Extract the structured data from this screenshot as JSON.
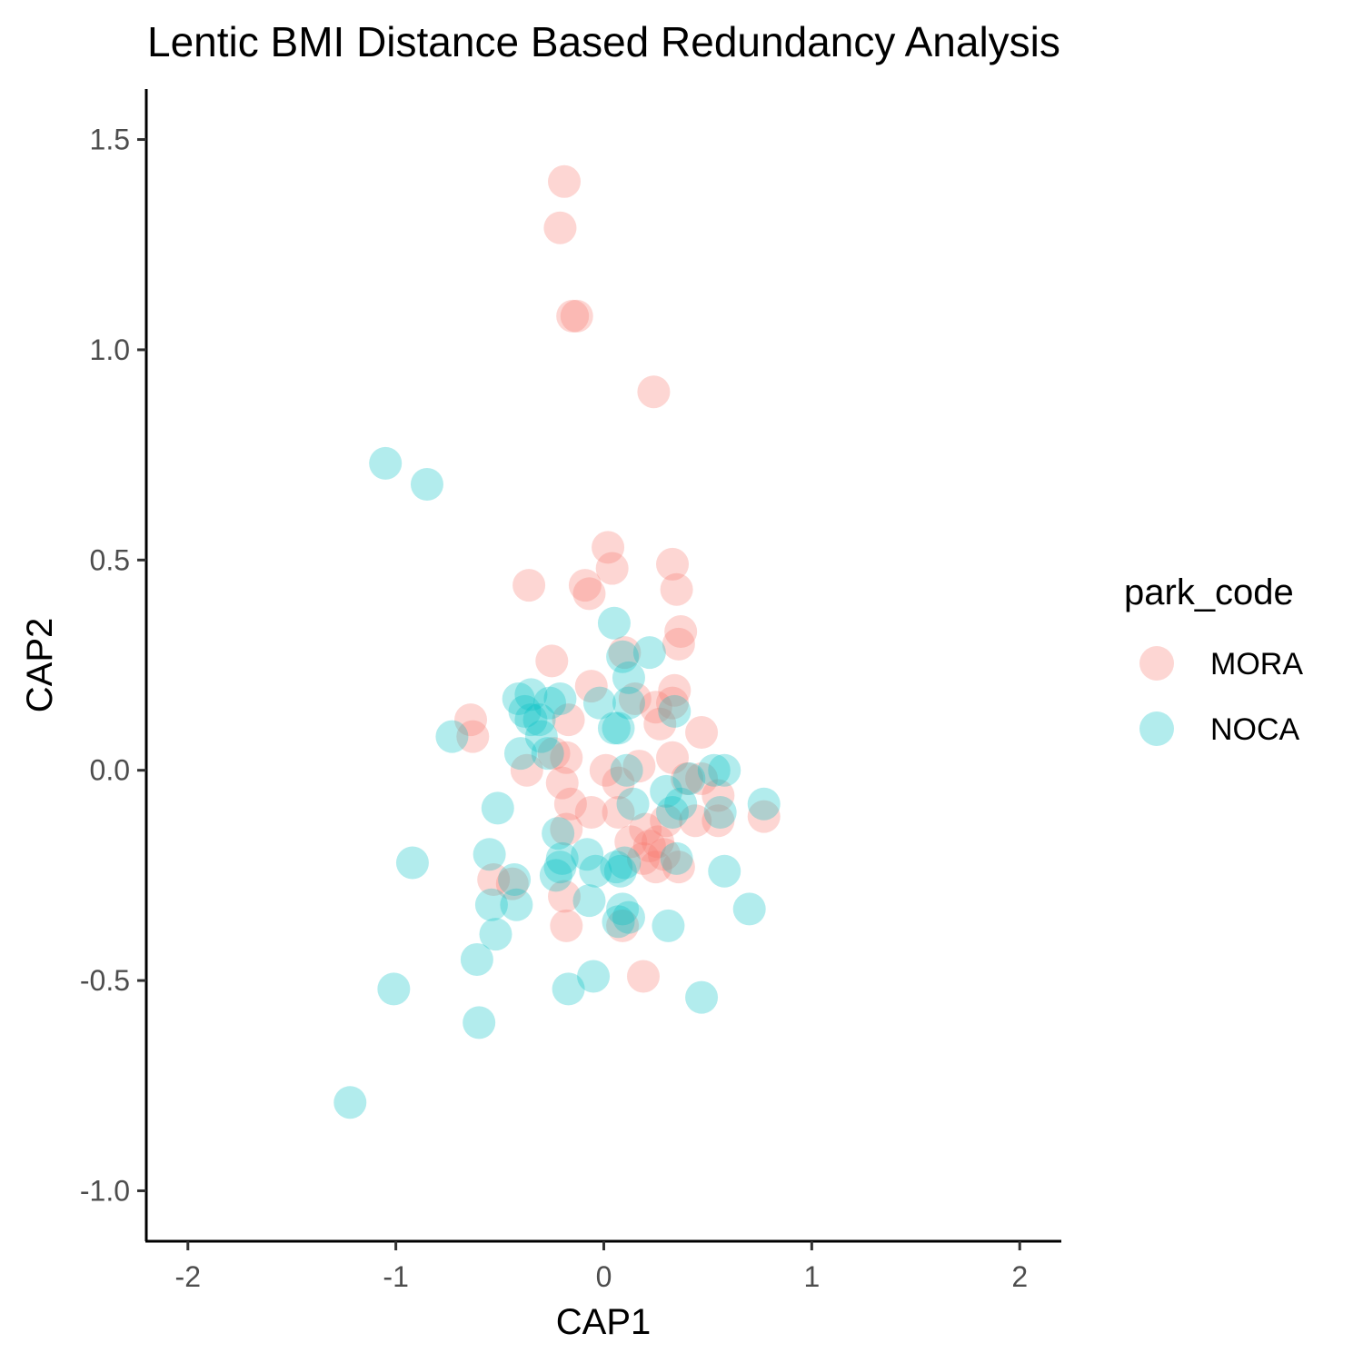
{
  "chart_data": {
    "type": "scatter",
    "title": "Lentic BMI Distance Based Redundancy Analysis",
    "xlabel": "CAP1",
    "ylabel": "CAP2",
    "xlim": [
      -2.2,
      2.2
    ],
    "ylim": [
      -1.12,
      1.62
    ],
    "xticks": [
      -2,
      -1,
      0,
      1,
      2
    ],
    "xtick_labels": [
      "-2",
      "-1",
      "0",
      "1",
      "2"
    ],
    "yticks": [
      -1.0,
      -0.5,
      0.0,
      0.5,
      1.0,
      1.5
    ],
    "ytick_labels": [
      "-1.0",
      "-0.5",
      "0.0",
      "0.5",
      "1.0",
      "1.5"
    ],
    "grid": false,
    "legend": {
      "title": "park_code",
      "placement": "right"
    },
    "series": [
      {
        "name": "MORA",
        "color": "#F8766D",
        "points": [
          [
            -0.19,
            1.4
          ],
          [
            -0.21,
            1.29
          ],
          [
            -0.15,
            1.08
          ],
          [
            -0.13,
            1.08
          ],
          [
            0.24,
            0.9
          ],
          [
            0.02,
            0.53
          ],
          [
            0.04,
            0.48
          ],
          [
            0.33,
            0.49
          ],
          [
            -0.36,
            0.44
          ],
          [
            -0.09,
            0.44
          ],
          [
            -0.07,
            0.42
          ],
          [
            0.35,
            0.43
          ],
          [
            0.37,
            0.33
          ],
          [
            0.36,
            0.3
          ],
          [
            -0.25,
            0.26
          ],
          [
            0.1,
            0.28
          ],
          [
            -0.06,
            0.2
          ],
          [
            0.34,
            0.19
          ],
          [
            0.15,
            0.17
          ],
          [
            0.25,
            0.15
          ],
          [
            -0.64,
            0.12
          ],
          [
            -0.63,
            0.08
          ],
          [
            -0.17,
            0.12
          ],
          [
            0.33,
            0.16
          ],
          [
            0.47,
            0.09
          ],
          [
            0.27,
            0.11
          ],
          [
            -0.18,
            0.03
          ],
          [
            -0.24,
            0.04
          ],
          [
            -0.37,
            0.0
          ],
          [
            0.33,
            0.03
          ],
          [
            0.01,
            0.0
          ],
          [
            0.07,
            -0.03
          ],
          [
            0.17,
            0.01
          ],
          [
            -0.2,
            -0.03
          ],
          [
            0.4,
            -0.02
          ],
          [
            0.47,
            -0.02
          ],
          [
            -0.16,
            -0.08
          ],
          [
            -0.06,
            -0.1
          ],
          [
            0.07,
            -0.1
          ],
          [
            0.55,
            -0.06
          ],
          [
            0.55,
            -0.12
          ],
          [
            0.77,
            -0.11
          ],
          [
            0.44,
            -0.12
          ],
          [
            0.3,
            -0.12
          ],
          [
            0.2,
            -0.14
          ],
          [
            -0.18,
            -0.14
          ],
          [
            0.13,
            -0.17
          ],
          [
            0.26,
            -0.17
          ],
          [
            0.22,
            -0.18
          ],
          [
            0.19,
            -0.21
          ],
          [
            0.29,
            -0.2
          ],
          [
            0.25,
            -0.23
          ],
          [
            0.36,
            -0.23
          ],
          [
            -0.53,
            -0.26
          ],
          [
            -0.44,
            -0.27
          ],
          [
            -0.19,
            -0.3
          ],
          [
            0.09,
            -0.37
          ],
          [
            -0.18,
            -0.37
          ],
          [
            0.19,
            -0.49
          ]
        ]
      },
      {
        "name": "NOCA",
        "color": "#00BFC4",
        "points": [
          [
            -1.05,
            0.73
          ],
          [
            -0.85,
            0.68
          ],
          [
            0.05,
            0.35
          ],
          [
            0.09,
            0.27
          ],
          [
            0.22,
            0.28
          ],
          [
            0.12,
            0.22
          ],
          [
            -0.41,
            0.17
          ],
          [
            -0.35,
            0.18
          ],
          [
            -0.26,
            0.16
          ],
          [
            -0.21,
            0.17
          ],
          [
            -0.02,
            0.16
          ],
          [
            0.12,
            0.16
          ],
          [
            -0.38,
            0.14
          ],
          [
            0.34,
            0.14
          ],
          [
            -0.31,
            0.12
          ],
          [
            -0.35,
            0.12
          ],
          [
            0.05,
            0.1
          ],
          [
            0.07,
            0.1
          ],
          [
            -0.73,
            0.08
          ],
          [
            -0.3,
            0.08
          ],
          [
            -0.4,
            0.04
          ],
          [
            -0.27,
            0.04
          ],
          [
            0.11,
            0.0
          ],
          [
            0.53,
            0.0
          ],
          [
            0.58,
            0.0
          ],
          [
            0.41,
            -0.02
          ],
          [
            0.3,
            -0.05
          ],
          [
            0.14,
            -0.08
          ],
          [
            0.37,
            -0.08
          ],
          [
            -0.51,
            -0.09
          ],
          [
            0.56,
            -0.1
          ],
          [
            0.77,
            -0.08
          ],
          [
            0.33,
            -0.1
          ],
          [
            -0.22,
            -0.15
          ],
          [
            -0.55,
            -0.2
          ],
          [
            -0.2,
            -0.21
          ],
          [
            -0.08,
            -0.2
          ],
          [
            0.35,
            -0.21
          ],
          [
            -0.92,
            -0.22
          ],
          [
            0.1,
            -0.22
          ],
          [
            -0.21,
            -0.23
          ],
          [
            0.06,
            -0.23
          ],
          [
            -0.04,
            -0.24
          ],
          [
            0.08,
            -0.24
          ],
          [
            0.58,
            -0.24
          ],
          [
            -0.43,
            -0.26
          ],
          [
            -0.23,
            -0.25
          ],
          [
            -0.54,
            -0.32
          ],
          [
            -0.42,
            -0.32
          ],
          [
            -0.07,
            -0.31
          ],
          [
            0.09,
            -0.33
          ],
          [
            0.12,
            -0.35
          ],
          [
            0.07,
            -0.36
          ],
          [
            0.31,
            -0.37
          ],
          [
            0.7,
            -0.33
          ],
          [
            -0.52,
            -0.39
          ],
          [
            -0.61,
            -0.45
          ],
          [
            -0.05,
            -0.49
          ],
          [
            -1.01,
            -0.52
          ],
          [
            -0.17,
            -0.52
          ],
          [
            0.47,
            -0.54
          ],
          [
            -0.6,
            -0.6
          ],
          [
            -1.22,
            -0.79
          ]
        ]
      }
    ]
  }
}
